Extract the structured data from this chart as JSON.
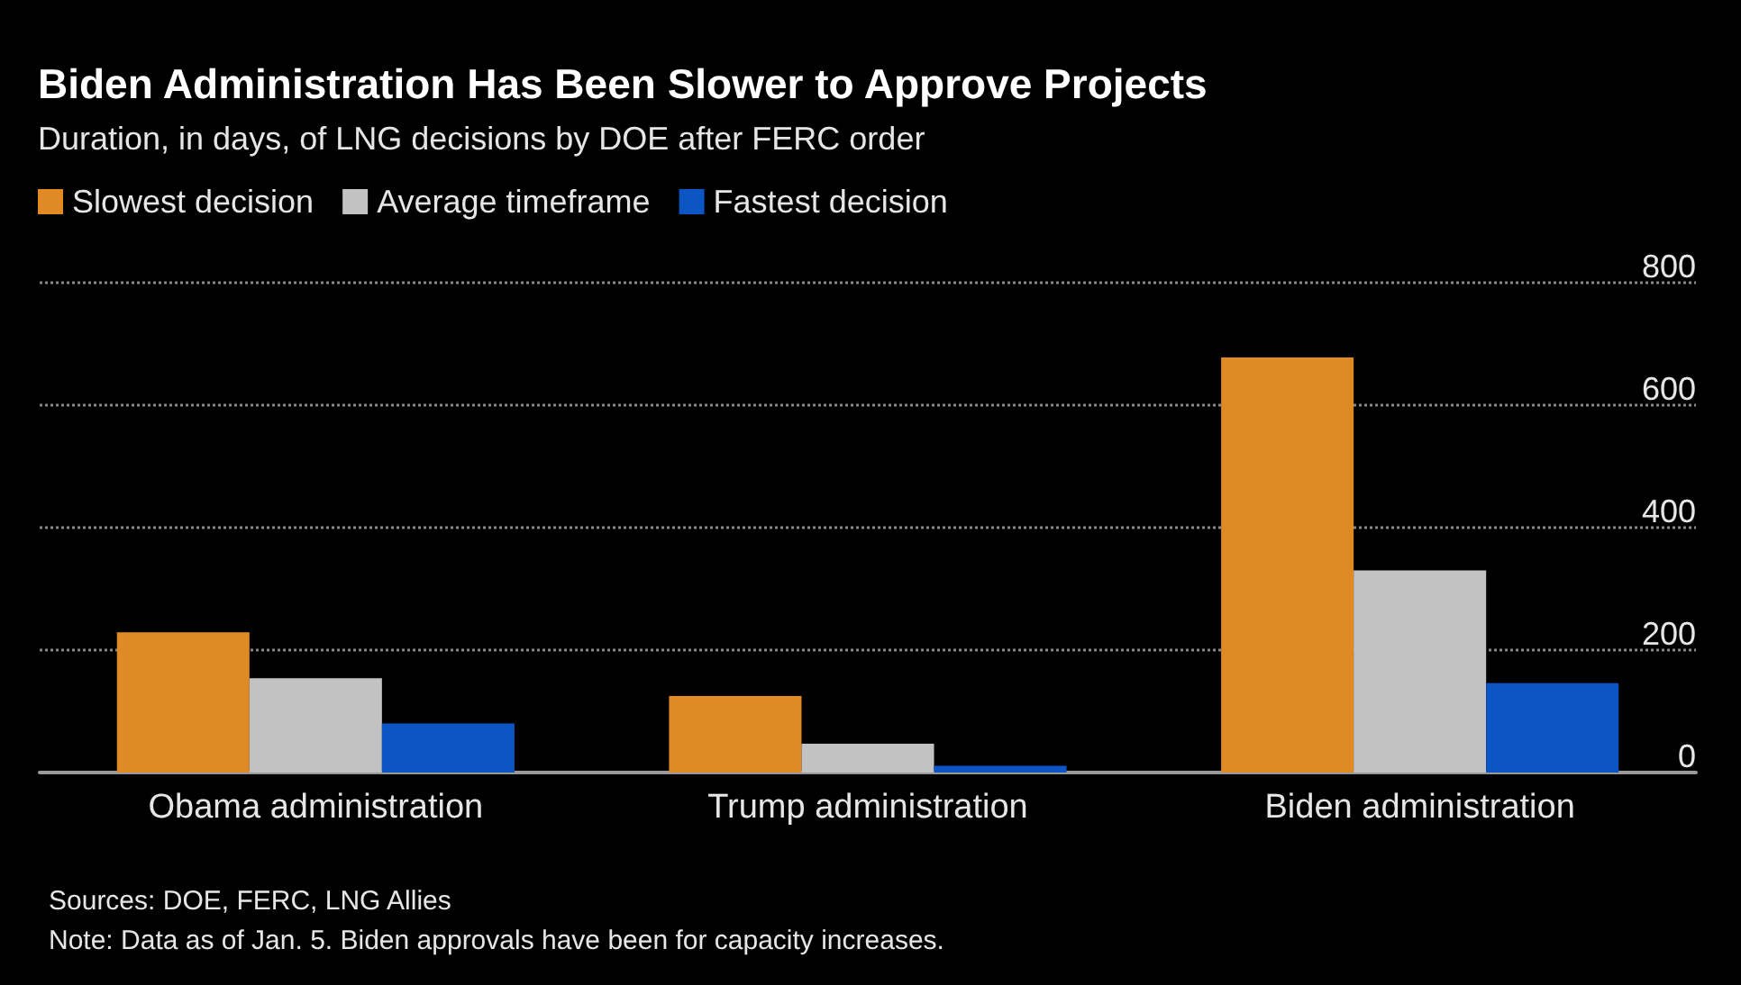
{
  "chart_data": {
    "type": "bar",
    "title": "Biden Administration Has Been Slower to Approve Projects",
    "subtitle": "Duration, in days, of LNG decisions by DOE after FERC order",
    "categories": [
      "Obama administration",
      "Trump administration",
      "Biden administration"
    ],
    "series": [
      {
        "name": "Slowest decision",
        "color": "#e08a26",
        "values": [
          229,
          125,
          678
        ]
      },
      {
        "name": "Average timeframe",
        "color": "#c2c2c2",
        "values": [
          154,
          47,
          330
        ]
      },
      {
        "name": "Fastest decision",
        "color": "#0b55c4",
        "values": [
          80,
          11,
          146
        ]
      }
    ],
    "ylim": [
      0,
      800
    ],
    "yticks": [
      0,
      200,
      400,
      600,
      800
    ],
    "grid": "y",
    "legend": "top left",
    "annotations": [
      "Sources: DOE, FERC, LNG Allies",
      "Note: Data as of Jan. 5. Biden approvals have been for capacity increases."
    ]
  }
}
